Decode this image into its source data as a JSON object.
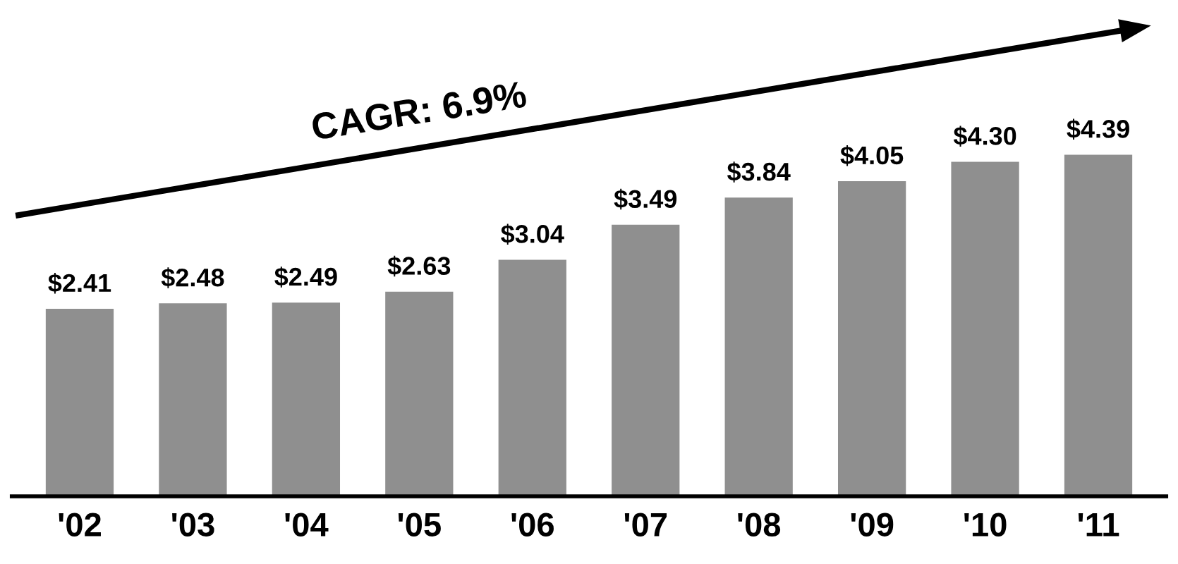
{
  "chart_data": {
    "type": "bar",
    "categories": [
      "'02",
      "'03",
      "'04",
      "'05",
      "'06",
      "'07",
      "'08",
      "'09",
      "'10",
      "'11"
    ],
    "values": [
      2.41,
      2.48,
      2.49,
      2.63,
      3.04,
      3.49,
      3.84,
      4.05,
      4.3,
      4.39
    ],
    "value_labels": [
      "$2.41",
      "$2.48",
      "$2.49",
      "$2.63",
      "$3.04",
      "$3.49",
      "$3.84",
      "$4.05",
      "$4.30",
      "$4.39"
    ],
    "color": "#8f8f8f",
    "annotations": [
      "CAGR: 6.9%"
    ],
    "grid": false,
    "legend": false
  }
}
